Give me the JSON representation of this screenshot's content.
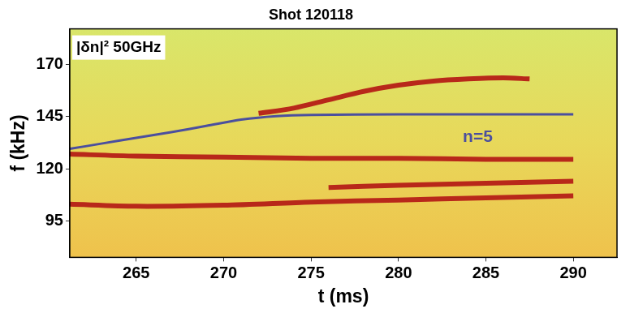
{
  "chart_data": {
    "type": "line",
    "title": "Shot 120118",
    "x_label": "t (ms)",
    "y_label": "f (kHz)",
    "xlim": [
      261.2,
      292.5
    ],
    "xticks": [
      265,
      270,
      275,
      280,
      285,
      290
    ],
    "ylim": [
      77.5,
      187
    ],
    "yticks": [
      95,
      120,
      145,
      170
    ],
    "grid": true,
    "annotations": [
      "|δn|² 50GHz"
    ],
    "series": [
      {
        "name": "n=5",
        "color": "#4b4f9e",
        "x": [
          261.2,
          263,
          265,
          267,
          269,
          271,
          273,
          275,
          280,
          285,
          290
        ],
        "values": [
          129.5,
          132,
          134.8,
          137.5,
          140.5,
          143.5,
          145.2,
          145.8,
          146,
          146,
          146
        ]
      },
      {
        "color": "#b8281a",
        "x": [
          272,
          274,
          276,
          278,
          280,
          282,
          284,
          286,
          287.5
        ],
        "values": [
          146.5,
          149,
          153,
          157,
          160,
          162,
          163,
          163.5,
          163
        ]
      },
      {
        "color": "#b8281a",
        "x": [
          261.2,
          265,
          270,
          275,
          280,
          285,
          290
        ],
        "values": [
          127,
          126,
          125.5,
          125,
          125,
          124.5,
          124.5
        ]
      },
      {
        "color": "#b8281a",
        "x": [
          261.2,
          265,
          270,
          275,
          280,
          285,
          290
        ],
        "values": [
          103,
          102,
          102.5,
          104,
          105,
          106,
          107
        ]
      },
      {
        "color": "#b8281a",
        "x": [
          276,
          280,
          285,
          290
        ],
        "values": [
          111,
          112,
          113,
          114
        ]
      }
    ]
  }
}
